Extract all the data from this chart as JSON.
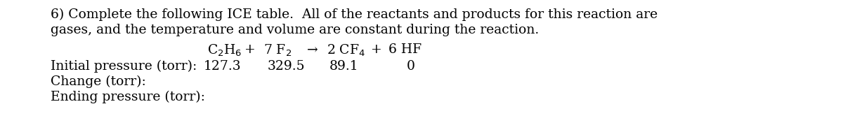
{
  "background_color": "#ffffff",
  "title_line1": "6) Complete the following ICE table.  All of the reactants and products for this reaction are",
  "title_line2": "gases, and the temperature and volume are constant during the reaction.",
  "row_labels": [
    "Initial pressure (torr):",
    "Change (torr):",
    "Ending pressure (torr):"
  ],
  "initial_values": [
    "127.3",
    "329.5",
    "89.1",
    "0"
  ],
  "font_family": "DejaVu Serif",
  "main_fontsize": 13.5
}
